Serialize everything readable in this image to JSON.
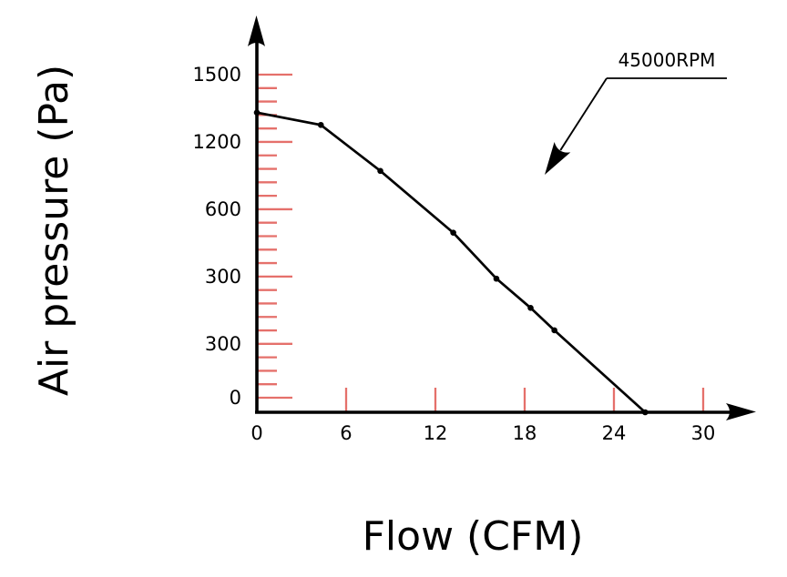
{
  "y_axis_title": "Air pressure (Pa)",
  "x_axis_title": "Flow (CFM)",
  "annotation_label": "45000RPM",
  "y_tick_labels": [
    "1500",
    "1200",
    "600",
    "300",
    "300",
    "0"
  ],
  "x_tick_labels": [
    "0",
    "6",
    "12",
    "18",
    "24",
    "30"
  ],
  "colors": {
    "line": "#000000",
    "tick": "#e5706b",
    "text": "#000000",
    "background": "#ffffff"
  },
  "chart_data": {
    "type": "line",
    "title": "",
    "xlabel": "Flow (CFM)",
    "ylabel": "Air pressure (Pa)",
    "legend": [
      "45000RPM"
    ],
    "legend_position": "annotation-arrow-top-right",
    "grid": false,
    "x_ticks": [
      0,
      6,
      12,
      18,
      24,
      30
    ],
    "y_tick_labels_as_shown": [
      "1500",
      "1200",
      "600",
      "300",
      "300",
      "0"
    ],
    "xlim": [
      0,
      32
    ],
    "ylim": [
      0,
      1620
    ],
    "series": [
      {
        "name": "45000RPM",
        "marker": "dot",
        "x": [
          0,
          4.3,
          8.3,
          13.2,
          16.1,
          18.4,
          20.0,
          26.1
        ],
        "y": [
          1335,
          1280,
          1075,
          800,
          595,
          465,
          365,
          0
        ]
      }
    ]
  }
}
